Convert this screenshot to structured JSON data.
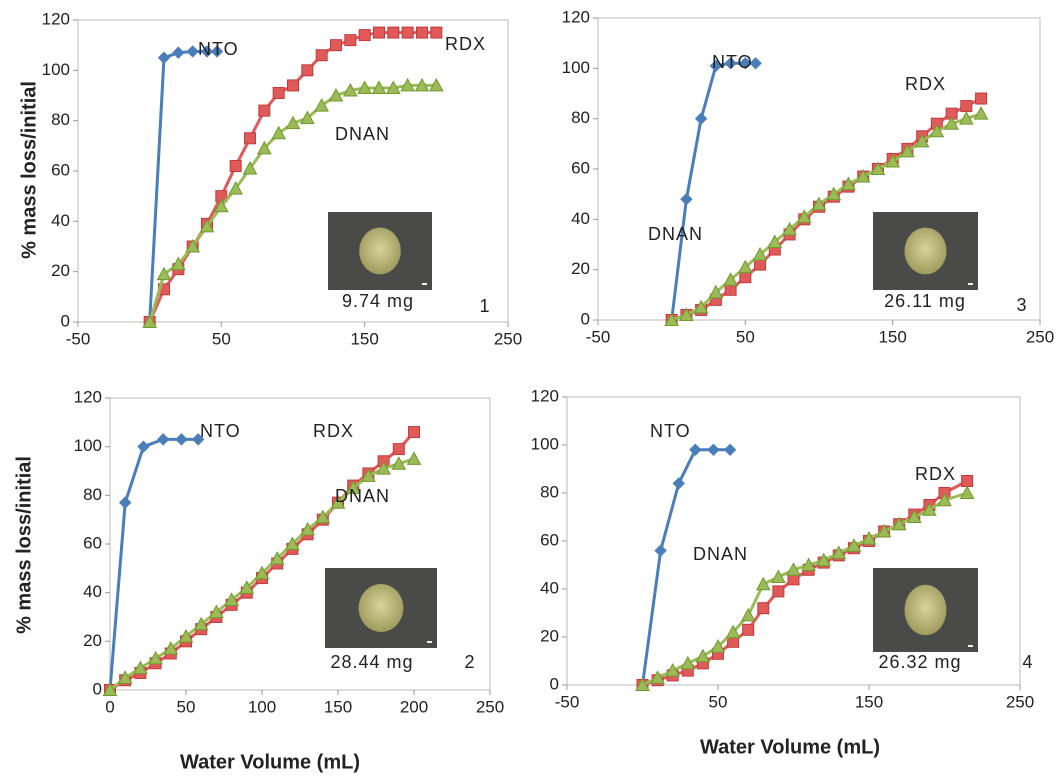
{
  "chart_data": [
    {
      "type": "line",
      "y_label": "% mass loss/initial",
      "xlim": [
        -50,
        250
      ],
      "xticks": [
        -50,
        50,
        150,
        250
      ],
      "ylim": [
        0,
        120
      ],
      "yticks": [
        0,
        20,
        40,
        60,
        80,
        100,
        120
      ],
      "annotations": [
        "9.74 mg",
        "1"
      ],
      "series": [
        {
          "name": "NTO",
          "color": "#4a7ebb",
          "marker": "diamond",
          "x": [
            0,
            10,
            20,
            30,
            40,
            47
          ],
          "values": [
            0,
            105,
            107,
            107.5,
            107.5,
            107.5
          ]
        },
        {
          "name": "RDX",
          "color": "#e05a5a",
          "marker": "square",
          "x": [
            0,
            10,
            20,
            30,
            40,
            50,
            60,
            70,
            80,
            90,
            100,
            110,
            120,
            130,
            140,
            150,
            160,
            170,
            180,
            190,
            200
          ],
          "values": [
            0,
            13,
            21,
            30,
            39,
            50,
            62,
            73,
            84,
            91,
            94,
            100,
            106,
            110,
            112,
            114,
            115,
            115,
            115,
            115,
            115
          ]
        },
        {
          "name": "DNAN",
          "color": "#9bbb59",
          "marker": "triangle",
          "x": [
            0,
            10,
            20,
            30,
            40,
            50,
            60,
            70,
            80,
            90,
            100,
            110,
            120,
            130,
            140,
            150,
            160,
            170,
            180,
            190,
            200
          ],
          "values": [
            0,
            19,
            23,
            30,
            38,
            46,
            53,
            61,
            69,
            75,
            79,
            81,
            86,
            90,
            92,
            93,
            93,
            93,
            94,
            94,
            94
          ]
        }
      ]
    },
    {
      "type": "line",
      "x_label": "Water Volume (mL)",
      "y_label": "% mass loss/initial",
      "xlim": [
        0,
        250
      ],
      "xticks": [
        0,
        50,
        100,
        150,
        200,
        250
      ],
      "ylim": [
        0,
        120
      ],
      "yticks": [
        0,
        20,
        40,
        60,
        80,
        100,
        120
      ],
      "annotations": [
        "28.44 mg",
        "2"
      ],
      "series": [
        {
          "name": "NTO",
          "color": "#4a7ebb",
          "marker": "diamond",
          "x": [
            0,
            10,
            22,
            35,
            47,
            58
          ],
          "values": [
            0,
            77,
            100,
            103,
            103,
            103
          ]
        },
        {
          "name": "RDX",
          "color": "#e05a5a",
          "marker": "square",
          "x": [
            0,
            10,
            20,
            30,
            40,
            50,
            60,
            70,
            80,
            90,
            100,
            110,
            120,
            130,
            140,
            150,
            160,
            170,
            180,
            190,
            200
          ],
          "values": [
            0,
            4,
            7,
            11,
            15,
            20,
            25,
            30,
            35,
            40,
            46,
            52,
            58,
            64,
            70,
            77,
            84,
            89,
            94,
            99,
            106
          ]
        },
        {
          "name": "DNAN",
          "color": "#9bbb59",
          "marker": "triangle",
          "x": [
            0,
            10,
            20,
            30,
            40,
            50,
            60,
            70,
            80,
            90,
            100,
            110,
            120,
            130,
            140,
            150,
            160,
            170,
            180,
            190,
            200
          ],
          "values": [
            0,
            5,
            9,
            13,
            17,
            22,
            27,
            32,
            37,
            42,
            48,
            54,
            60,
            66,
            71,
            77,
            83,
            88,
            91,
            93,
            95
          ]
        }
      ]
    },
    {
      "type": "line",
      "xlim": [
        -50,
        250
      ],
      "xticks": [
        -50,
        50,
        150,
        250
      ],
      "ylim": [
        0,
        120
      ],
      "yticks": [
        0,
        20,
        40,
        60,
        80,
        100,
        120
      ],
      "annotations": [
        "26.11 mg",
        "3"
      ],
      "series": [
        {
          "name": "NTO",
          "color": "#4a7ebb",
          "marker": "diamond",
          "x": [
            0,
            10,
            20,
            30,
            40,
            50,
            57
          ],
          "values": [
            0,
            48,
            80,
            101,
            102,
            102,
            102
          ]
        },
        {
          "name": "RDX",
          "color": "#e05a5a",
          "marker": "square",
          "x": [
            0,
            10,
            20,
            30,
            40,
            50,
            60,
            70,
            80,
            90,
            100,
            110,
            120,
            130,
            140,
            150,
            160,
            170,
            180,
            190,
            200,
            210
          ],
          "values": [
            0,
            2,
            4,
            8,
            12,
            17,
            22,
            28,
            34,
            40,
            45,
            49,
            53,
            57,
            60,
            64,
            68,
            73,
            78,
            82,
            85,
            88
          ]
        },
        {
          "name": "DNAN",
          "color": "#9bbb59",
          "marker": "triangle",
          "x": [
            0,
            10,
            20,
            30,
            40,
            50,
            60,
            70,
            80,
            90,
            100,
            110,
            120,
            130,
            140,
            150,
            160,
            170,
            180,
            190,
            200,
            210
          ],
          "values": [
            0,
            2,
            5,
            11,
            16,
            21,
            26,
            31,
            36,
            41,
            46,
            50,
            54,
            57,
            60,
            63,
            67,
            71,
            75,
            78,
            80,
            82
          ]
        }
      ]
    },
    {
      "type": "line",
      "x_label": "Water Volume (mL)",
      "xlim": [
        -50,
        250
      ],
      "xticks": [
        -50,
        50,
        150,
        250
      ],
      "ylim": [
        0,
        120
      ],
      "yticks": [
        0,
        20,
        40,
        60,
        80,
        100,
        120
      ],
      "annotations": [
        "26.32 mg",
        "4"
      ],
      "series": [
        {
          "name": "NTO",
          "color": "#4a7ebb",
          "marker": "diamond",
          "x": [
            0,
            12,
            24,
            35,
            47,
            58
          ],
          "values": [
            0,
            56,
            84,
            98,
            98,
            98
          ]
        },
        {
          "name": "RDX",
          "color": "#e05a5a",
          "marker": "square",
          "x": [
            0,
            10,
            20,
            30,
            40,
            50,
            60,
            70,
            80,
            90,
            100,
            110,
            120,
            130,
            140,
            150,
            160,
            170,
            180,
            190,
            200,
            215
          ],
          "values": [
            0,
            2,
            4,
            6,
            9,
            13,
            18,
            23,
            32,
            39,
            44,
            48,
            51,
            54,
            57,
            60,
            64,
            67,
            71,
            75,
            80,
            85
          ]
        },
        {
          "name": "DNAN",
          "color": "#9bbb59",
          "marker": "triangle",
          "x": [
            0,
            10,
            20,
            30,
            40,
            50,
            60,
            70,
            80,
            90,
            100,
            110,
            120,
            130,
            140,
            150,
            160,
            170,
            180,
            190,
            200,
            215
          ],
          "values": [
            0,
            3,
            6,
            9,
            12,
            16,
            22,
            29,
            42,
            45,
            48,
            50,
            52,
            55,
            58,
            61,
            64,
            67,
            70,
            73,
            77,
            80
          ]
        }
      ]
    }
  ]
}
